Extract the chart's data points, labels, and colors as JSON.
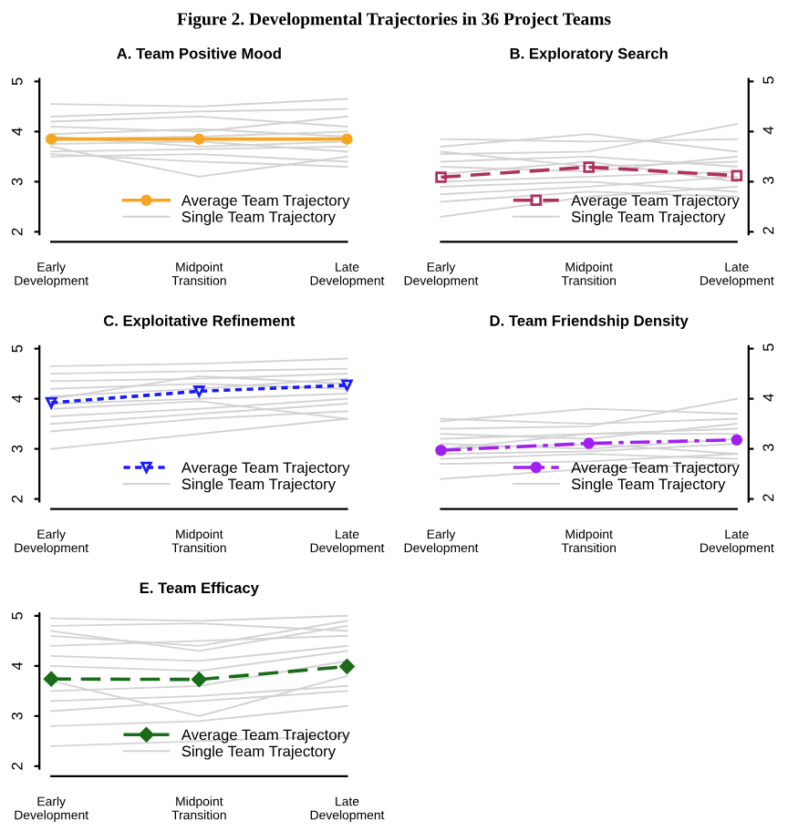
{
  "chart_data": [
    {
      "type": "line",
      "title": "A. Team Positive Mood",
      "annotations": [
        "Figure 2. Developmental Trajectories in 36 Project Teams"
      ],
      "categories": [
        "Early\nDevelopment",
        "Midpoint\nTransition",
        "Late\nDevelopment"
      ],
      "ylim": [
        1.95,
        5.05
      ],
      "yticks": [
        2,
        3,
        4,
        5
      ],
      "legend": "bottom right",
      "grid": false,
      "series": [
        {
          "name": "Single Team Trajectory",
          "color": "#d3d3d3",
          "marker": "none",
          "line_style": "solid",
          "values": [
            4.55,
            4.5,
            4.65
          ]
        },
        {
          "color": "#d3d3d3",
          "marker": "none",
          "line_style": "solid",
          "values": [
            4.2,
            4.3,
            4.1
          ]
        },
        {
          "color": "#d3d3d3",
          "marker": "none",
          "line_style": "solid",
          "values": [
            4.1,
            4.0,
            4.3
          ]
        },
        {
          "color": "#d3d3d3",
          "marker": "none",
          "line_style": "solid",
          "values": [
            3.95,
            4.05,
            3.9
          ]
        },
        {
          "color": "#d3d3d3",
          "marker": "none",
          "line_style": "solid",
          "values": [
            3.9,
            3.7,
            3.8
          ]
        },
        {
          "color": "#d3d3d3",
          "marker": "none",
          "line_style": "solid",
          "values": [
            3.75,
            3.8,
            3.6
          ]
        },
        {
          "color": "#d3d3d3",
          "marker": "none",
          "line_style": "solid",
          "values": [
            3.7,
            3.1,
            3.5
          ]
        },
        {
          "color": "#d3d3d3",
          "marker": "none",
          "line_style": "solid",
          "values": [
            3.6,
            3.65,
            3.7
          ]
        },
        {
          "color": "#d3d3d3",
          "marker": "none",
          "line_style": "solid",
          "values": [
            3.5,
            3.55,
            3.4
          ]
        },
        {
          "color": "#d3d3d3",
          "marker": "none",
          "line_style": "solid",
          "values": [
            4.3,
            4.4,
            4.45
          ]
        },
        {
          "color": "#d3d3d3",
          "marker": "none",
          "line_style": "solid",
          "values": [
            3.85,
            3.9,
            4.0
          ]
        },
        {
          "color": "#d3d3d3",
          "marker": "none",
          "line_style": "solid",
          "values": [
            3.55,
            3.4,
            3.3
          ]
        },
        {
          "name": "Average Team Trajectory",
          "color": "#f5a623",
          "marker": "circle",
          "line_style": "solid",
          "values": [
            3.85,
            3.85,
            3.85
          ]
        }
      ]
    },
    {
      "type": "line",
      "title": "B. Exploratory Search",
      "categories": [
        "Early\nDevelopment",
        "Midpoint\nTransition",
        "Late\nDevelopment"
      ],
      "y2lim": [
        1.95,
        5.05
      ],
      "y2ticks": [
        2,
        3,
        4,
        5
      ],
      "legend": "bottom right",
      "grid": false,
      "series": [
        {
          "name": "Single Team Trajectory",
          "axis": "y2",
          "color": "#d3d3d3",
          "marker": "none",
          "line_style": "solid",
          "values": [
            3.85,
            3.8,
            3.85
          ]
        },
        {
          "axis": "y2",
          "color": "#d3d3d3",
          "marker": "none",
          "line_style": "solid",
          "values": [
            3.7,
            3.95,
            3.6
          ]
        },
        {
          "axis": "y2",
          "color": "#d3d3d3",
          "marker": "none",
          "line_style": "solid",
          "values": [
            3.55,
            3.6,
            4.15
          ]
        },
        {
          "axis": "y2",
          "color": "#d3d3d3",
          "marker": "none",
          "line_style": "solid",
          "values": [
            3.4,
            3.5,
            3.3
          ]
        },
        {
          "axis": "y2",
          "color": "#d3d3d3",
          "marker": "none",
          "line_style": "solid",
          "values": [
            3.3,
            3.2,
            3.5
          ]
        },
        {
          "axis": "y2",
          "color": "#d3d3d3",
          "marker": "none",
          "line_style": "solid",
          "values": [
            3.15,
            3.4,
            3.0
          ]
        },
        {
          "axis": "y2",
          "color": "#d3d3d3",
          "marker": "none",
          "line_style": "solid",
          "values": [
            3.0,
            3.1,
            3.2
          ]
        },
        {
          "axis": "y2",
          "color": "#d3d3d3",
          "marker": "none",
          "line_style": "solid",
          "values": [
            2.9,
            3.0,
            2.8
          ]
        },
        {
          "axis": "y2",
          "color": "#d3d3d3",
          "marker": "none",
          "line_style": "solid",
          "values": [
            2.75,
            2.9,
            3.1
          ]
        },
        {
          "axis": "y2",
          "color": "#d3d3d3",
          "marker": "none",
          "line_style": "solid",
          "values": [
            2.6,
            2.8,
            2.7
          ]
        },
        {
          "axis": "y2",
          "color": "#d3d3d3",
          "marker": "none",
          "line_style": "solid",
          "values": [
            2.3,
            2.7,
            2.9
          ]
        },
        {
          "axis": "y2",
          "color": "#d3d3d3",
          "marker": "none",
          "line_style": "solid",
          "values": [
            3.6,
            3.3,
            3.4
          ]
        },
        {
          "name": "Average Team Trajectory",
          "axis": "y2",
          "color": "#b03060",
          "marker": "square",
          "line_style": "dashed",
          "values": [
            3.09,
            3.29,
            3.12
          ]
        }
      ]
    },
    {
      "type": "line",
      "title": "C. Exploitative Refinement",
      "categories": [
        "Early\nDevelopment",
        "Midpoint\nTransition",
        "Late\nDevelopment"
      ],
      "ylim": [
        1.95,
        5.05
      ],
      "yticks": [
        2,
        3,
        4,
        5
      ],
      "legend": "bottom right",
      "grid": false,
      "series": [
        {
          "name": "Single Team Trajectory",
          "color": "#d3d3d3",
          "marker": "none",
          "line_style": "solid",
          "values": [
            4.65,
            4.7,
            4.8
          ]
        },
        {
          "color": "#d3d3d3",
          "marker": "none",
          "line_style": "solid",
          "values": [
            4.5,
            4.55,
            4.6
          ]
        },
        {
          "color": "#d3d3d3",
          "marker": "none",
          "line_style": "solid",
          "values": [
            4.35,
            4.4,
            4.5
          ]
        },
        {
          "color": "#d3d3d3",
          "marker": "none",
          "line_style": "solid",
          "values": [
            4.2,
            4.3,
            4.2
          ]
        },
        {
          "color": "#d3d3d3",
          "marker": "none",
          "line_style": "solid",
          "values": [
            4.05,
            4.2,
            4.4
          ]
        },
        {
          "color": "#d3d3d3",
          "marker": "none",
          "line_style": "solid",
          "values": [
            3.9,
            4.0,
            4.1
          ]
        },
        {
          "color": "#d3d3d3",
          "marker": "none",
          "line_style": "solid",
          "values": [
            3.8,
            3.95,
            3.6
          ]
        },
        {
          "color": "#d3d3d3",
          "marker": "none",
          "line_style": "solid",
          "values": [
            3.65,
            3.8,
            4.0
          ]
        },
        {
          "color": "#d3d3d3",
          "marker": "none",
          "line_style": "solid",
          "values": [
            3.5,
            3.7,
            3.9
          ]
        },
        {
          "color": "#d3d3d3",
          "marker": "none",
          "line_style": "solid",
          "values": [
            3.35,
            3.6,
            3.75
          ]
        },
        {
          "color": "#d3d3d3",
          "marker": "none",
          "line_style": "solid",
          "values": [
            3.0,
            3.3,
            3.6
          ]
        },
        {
          "color": "#d3d3d3",
          "marker": "none",
          "line_style": "solid",
          "values": [
            4.0,
            4.45,
            4.3
          ]
        },
        {
          "name": "Average Team Trajectory",
          "color": "#1a1aff",
          "marker": "triangle",
          "line_style": "dotted",
          "values": [
            3.92,
            4.15,
            4.27
          ]
        }
      ]
    },
    {
      "type": "line",
      "title": "D. Team Friendship Density",
      "categories": [
        "Early\nDevelopment",
        "Midpoint\nTransition",
        "Late\nDevelopment"
      ],
      "y2lim": [
        1.95,
        5.05
      ],
      "y2ticks": [
        2,
        3,
        4,
        5
      ],
      "legend": "bottom right",
      "grid": false,
      "series": [
        {
          "name": "Single Team Trajectory",
          "axis": "y2",
          "color": "#d3d3d3",
          "marker": "none",
          "line_style": "solid",
          "values": [
            3.6,
            3.5,
            3.6
          ]
        },
        {
          "axis": "y2",
          "color": "#d3d3d3",
          "marker": "none",
          "line_style": "solid",
          "values": [
            3.55,
            3.8,
            3.7
          ]
        },
        {
          "axis": "y2",
          "color": "#d3d3d3",
          "marker": "none",
          "line_style": "solid",
          "values": [
            3.4,
            3.45,
            4.0
          ]
        },
        {
          "axis": "y2",
          "color": "#d3d3d3",
          "marker": "none",
          "line_style": "solid",
          "values": [
            3.3,
            3.2,
            3.5
          ]
        },
        {
          "axis": "y2",
          "color": "#d3d3d3",
          "marker": "none",
          "line_style": "solid",
          "values": [
            3.2,
            3.3,
            3.3
          ]
        },
        {
          "axis": "y2",
          "color": "#d3d3d3",
          "marker": "none",
          "line_style": "solid",
          "values": [
            3.1,
            3.0,
            3.2
          ]
        },
        {
          "axis": "y2",
          "color": "#d3d3d3",
          "marker": "none",
          "line_style": "solid",
          "values": [
            3.0,
            3.1,
            2.9
          ]
        },
        {
          "axis": "y2",
          "color": "#d3d3d3",
          "marker": "none",
          "line_style": "solid",
          "values": [
            2.9,
            2.95,
            3.1
          ]
        },
        {
          "axis": "y2",
          "color": "#d3d3d3",
          "marker": "none",
          "line_style": "solid",
          "values": [
            2.8,
            2.9,
            2.8
          ]
        },
        {
          "axis": "y2",
          "color": "#d3d3d3",
          "marker": "none",
          "line_style": "solid",
          "values": [
            2.7,
            2.75,
            2.9
          ]
        },
        {
          "axis": "y2",
          "color": "#d3d3d3",
          "marker": "none",
          "line_style": "solid",
          "values": [
            2.4,
            2.6,
            2.7
          ]
        },
        {
          "axis": "y2",
          "color": "#d3d3d3",
          "marker": "none",
          "line_style": "solid",
          "values": [
            3.0,
            3.3,
            3.4
          ]
        },
        {
          "name": "Average Team Trajectory",
          "axis": "y2",
          "color": "#a020f0",
          "marker": "circle",
          "line_style": "dashdot",
          "values": [
            2.97,
            3.11,
            3.18
          ]
        }
      ]
    },
    {
      "type": "line",
      "title": "E. Team Efficacy",
      "categories": [
        "Early\nDevelopment",
        "Midpoint\nTransition",
        "Late\nDevelopment"
      ],
      "ylim": [
        1.95,
        5.05
      ],
      "yticks": [
        2,
        3,
        4,
        5
      ],
      "legend": "bottom right",
      "grid": false,
      "series": [
        {
          "name": "Single Team Trajectory",
          "color": "#d3d3d3",
          "marker": "none",
          "line_style": "solid",
          "values": [
            4.95,
            4.9,
            5.0
          ]
        },
        {
          "color": "#d3d3d3",
          "marker": "none",
          "line_style": "solid",
          "values": [
            4.8,
            4.85,
            4.7
          ]
        },
        {
          "color": "#d3d3d3",
          "marker": "none",
          "line_style": "solid",
          "values": [
            4.6,
            4.4,
            4.9
          ]
        },
        {
          "color": "#d3d3d3",
          "marker": "none",
          "line_style": "solid",
          "values": [
            4.4,
            4.5,
            4.6
          ]
        },
        {
          "color": "#d3d3d3",
          "marker": "none",
          "line_style": "solid",
          "values": [
            4.2,
            4.1,
            4.4
          ]
        },
        {
          "color": "#d3d3d3",
          "marker": "none",
          "line_style": "solid",
          "values": [
            4.0,
            3.9,
            4.3
          ]
        },
        {
          "color": "#d3d3d3",
          "marker": "none",
          "line_style": "solid",
          "values": [
            3.7,
            3.0,
            3.8
          ]
        },
        {
          "color": "#d3d3d3",
          "marker": "none",
          "line_style": "solid",
          "values": [
            3.5,
            3.6,
            4.1
          ]
        },
        {
          "color": "#d3d3d3",
          "marker": "none",
          "line_style": "solid",
          "values": [
            3.3,
            3.4,
            3.6
          ]
        },
        {
          "color": "#d3d3d3",
          "marker": "none",
          "line_style": "solid",
          "values": [
            3.1,
            3.3,
            3.5
          ]
        },
        {
          "color": "#d3d3d3",
          "marker": "none",
          "line_style": "solid",
          "values": [
            2.8,
            2.9,
            3.2
          ]
        },
        {
          "color": "#d3d3d3",
          "marker": "none",
          "line_style": "solid",
          "values": [
            2.4,
            2.5,
            2.6
          ]
        },
        {
          "color": "#d3d3d3",
          "marker": "none",
          "line_style": "solid",
          "values": [
            4.7,
            4.3,
            4.8
          ]
        },
        {
          "name": "Average Team Trajectory",
          "color": "#1a6b1a",
          "marker": "diamond",
          "line_style": "dashed",
          "values": [
            3.74,
            3.73,
            3.99
          ]
        }
      ]
    }
  ]
}
